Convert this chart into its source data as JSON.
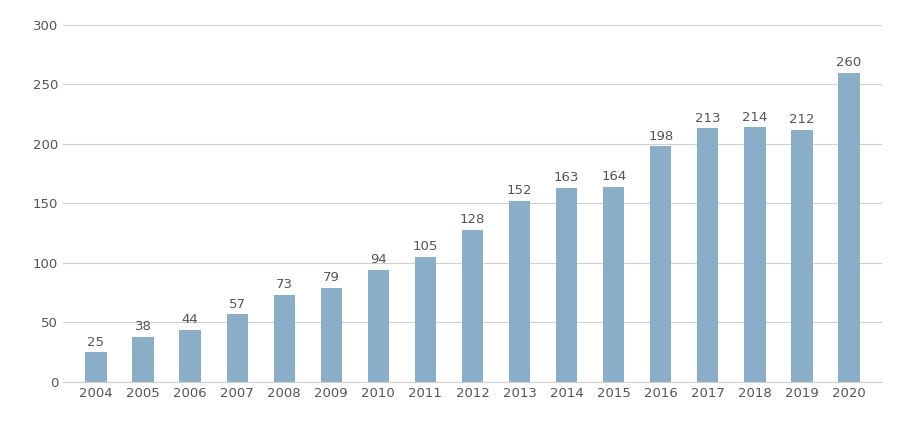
{
  "years": [
    "2004",
    "2005",
    "2006",
    "2007",
    "2008",
    "2009",
    "2010",
    "2011",
    "2012",
    "2013",
    "2014",
    "2015",
    "2016",
    "2017",
    "2018",
    "2019",
    "2020"
  ],
  "values": [
    25,
    38,
    44,
    57,
    73,
    79,
    94,
    105,
    128,
    152,
    163,
    164,
    198,
    213,
    214,
    212,
    260
  ],
  "bar_color": "#8aaec8",
  "bar_edge_color": "none",
  "background_color": "#ffffff",
  "ylim": [
    0,
    310
  ],
  "yticks": [
    0,
    50,
    100,
    150,
    200,
    250,
    300
  ],
  "grid_color": "#d0d0d0",
  "label_fontsize": 9.5,
  "tick_fontsize": 9.5,
  "label_color": "#555555",
  "bar_width": 0.45
}
